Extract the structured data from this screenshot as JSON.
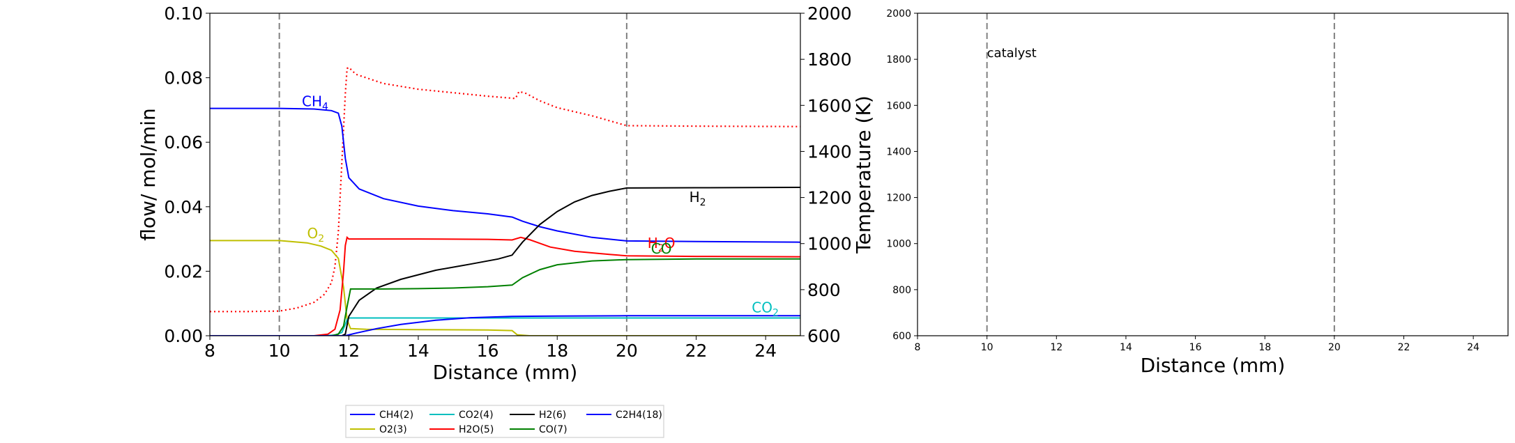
{
  "chart_data": [
    {
      "type": "line",
      "xlabel": "Distance (mm)",
      "ylabel": "flow/ mol/min",
      "y2label": "Temperature (K)",
      "xlim": [
        8,
        25
      ],
      "ylim": [
        0,
        0.1
      ],
      "y2lim": [
        600,
        2000
      ],
      "xticks": [
        "8",
        "10",
        "12",
        "14",
        "16",
        "18",
        "20",
        "22",
        "24"
      ],
      "yticks": [
        "0.00",
        "0.02",
        "0.04",
        "0.06",
        "0.08",
        "0.10"
      ],
      "y2ticks": [
        "600",
        "800",
        "1000",
        "1200",
        "1400",
        "1600",
        "1800",
        "2000"
      ],
      "vlines": [
        10,
        20
      ],
      "series": [
        {
          "name": "CH4(2)",
          "color": "#0000ff",
          "x": [
            8,
            10,
            11,
            11.5,
            11.7,
            11.8,
            11.9,
            12,
            12.3,
            13,
            14,
            15,
            16,
            16.7,
            17,
            17.5,
            18,
            19,
            20,
            22,
            25
          ],
          "y": [
            0.0705,
            0.0705,
            0.0703,
            0.0698,
            0.069,
            0.065,
            0.055,
            0.049,
            0.0455,
            0.0425,
            0.0402,
            0.0388,
            0.0378,
            0.0368,
            0.0355,
            0.0338,
            0.0325,
            0.0305,
            0.0294,
            0.0292,
            0.029
          ]
        },
        {
          "name": "O2(3)",
          "color": "#bfbf00",
          "x": [
            8,
            10,
            10.8,
            11.2,
            11.5,
            11.7,
            11.85,
            11.95,
            12.05,
            12.5,
            14,
            16,
            16.7,
            16.85,
            17.2,
            25
          ],
          "y": [
            0.0295,
            0.0295,
            0.0288,
            0.0278,
            0.0265,
            0.024,
            0.015,
            0.005,
            0.0022,
            0.002,
            0.0019,
            0.0018,
            0.0016,
            0.0003,
            0,
            0
          ]
        },
        {
          "name": "CO2(4)",
          "color": "#00bfbf",
          "x": [
            8,
            11.2,
            11.6,
            11.8,
            11.9,
            11.95,
            12,
            25
          ],
          "y": [
            0,
            0,
            0.0002,
            0.001,
            0.0035,
            0.005,
            0.0055,
            0.0055
          ]
        },
        {
          "name": "H2O(5)",
          "color": "#ff0000",
          "x": [
            8,
            11,
            11.4,
            11.6,
            11.75,
            11.85,
            11.9,
            11.95,
            12,
            12.3,
            14,
            16,
            16.7,
            16.95,
            17.2,
            17.8,
            18.5,
            19.5,
            20,
            22,
            25
          ],
          "y": [
            0,
            0,
            0.0005,
            0.002,
            0.008,
            0.02,
            0.028,
            0.0305,
            0.03,
            0.03,
            0.03,
            0.0299,
            0.0297,
            0.0305,
            0.0298,
            0.0275,
            0.0262,
            0.0252,
            0.0248,
            0.0246,
            0.0245
          ]
        },
        {
          "name": "H2(6)",
          "color": "#000000",
          "x": [
            8,
            11.8,
            11.9,
            12,
            12.3,
            12.8,
            13.5,
            14.5,
            15.5,
            16.3,
            16.7,
            17,
            17.5,
            18,
            18.5,
            19,
            19.5,
            20,
            22,
            25
          ],
          "y": [
            0,
            0,
            0.0005,
            0.006,
            0.011,
            0.0148,
            0.0175,
            0.0203,
            0.0222,
            0.0238,
            0.025,
            0.029,
            0.0345,
            0.0385,
            0.0415,
            0.0435,
            0.0448,
            0.0458,
            0.0459,
            0.046
          ]
        },
        {
          "name": "CO(7)",
          "color": "#008000",
          "x": [
            8,
            11.5,
            11.7,
            11.85,
            11.95,
            12.05,
            13,
            14,
            15,
            16,
            16.7,
            17,
            17.5,
            18,
            19,
            20,
            22,
            25
          ],
          "y": [
            0,
            0,
            0.0005,
            0.003,
            0.009,
            0.0145,
            0.0145,
            0.0146,
            0.0148,
            0.0152,
            0.0157,
            0.018,
            0.0205,
            0.022,
            0.0232,
            0.0236,
            0.0238,
            0.0238
          ]
        },
        {
          "name": "C2H4(18)",
          "color": "#0000ff",
          "x": [
            8,
            11.9,
            12.2,
            12.8,
            13.5,
            14.5,
            15.5,
            16.7,
            18,
            20,
            25
          ],
          "y": [
            0,
            0,
            0.0008,
            0.0022,
            0.0035,
            0.0048,
            0.0056,
            0.006,
            0.0061,
            0.0062,
            0.0062
          ]
        }
      ],
      "temperature": {
        "color": "#ff0000",
        "style": "dotted",
        "x": [
          8,
          9,
          10,
          10.5,
          11,
          11.3,
          11.5,
          11.6,
          11.7,
          11.8,
          11.9,
          11.95,
          12,
          12.2,
          12.6,
          13,
          14,
          15,
          16,
          16.8,
          16.9,
          17.1,
          17.5,
          18,
          19,
          20,
          22,
          25
        ],
        "y": [
          705,
          705,
          707,
          720,
          745,
          780,
          830,
          900,
          1050,
          1350,
          1650,
          1760,
          1765,
          1735,
          1715,
          1695,
          1670,
          1655,
          1640,
          1630,
          1660,
          1652,
          1620,
          1590,
          1555,
          1512,
          1510,
          1508
        ]
      },
      "annotations": [
        {
          "text": "CH",
          "sub": "4",
          "x": 10.65,
          "y": 0.0712,
          "color": "#0000ff"
        },
        {
          "text": "O",
          "sub": "2",
          "x": 10.8,
          "y": 0.0302,
          "color": "#bfbf00"
        },
        {
          "text": "H",
          "sub": "2",
          "x": 21.8,
          "y": 0.0415,
          "color": "#000000"
        },
        {
          "text": "H",
          "sub": "2",
          "text2": "O",
          "x": 20.6,
          "y": 0.0272,
          "color": "#ff0000"
        },
        {
          "text": "CO",
          "sub": "",
          "x": 20.7,
          "y": 0.0255,
          "color": "#008000"
        },
        {
          "text": "CO",
          "sub": "2",
          "x": 23.6,
          "y": 0.0072,
          "color": "#00bfbf"
        }
      ],
      "legend": {
        "placement": "bottom-center"
      }
    },
    {
      "type": "line",
      "xlabel": "Distance (mm)",
      "xlim": [
        8,
        25
      ],
      "ylim": [
        600,
        2000
      ],
      "xticks": [
        "8",
        "10",
        "12",
        "14",
        "16",
        "18",
        "20",
        "22",
        "24"
      ],
      "yticks": [
        "600",
        "800",
        "1000",
        "1200",
        "1400",
        "1600",
        "1800",
        "2000"
      ],
      "vlines": [
        10,
        20
      ],
      "annotations": [
        {
          "text": "catalyst",
          "x": 10,
          "y": 1810
        }
      ],
      "series": []
    }
  ]
}
